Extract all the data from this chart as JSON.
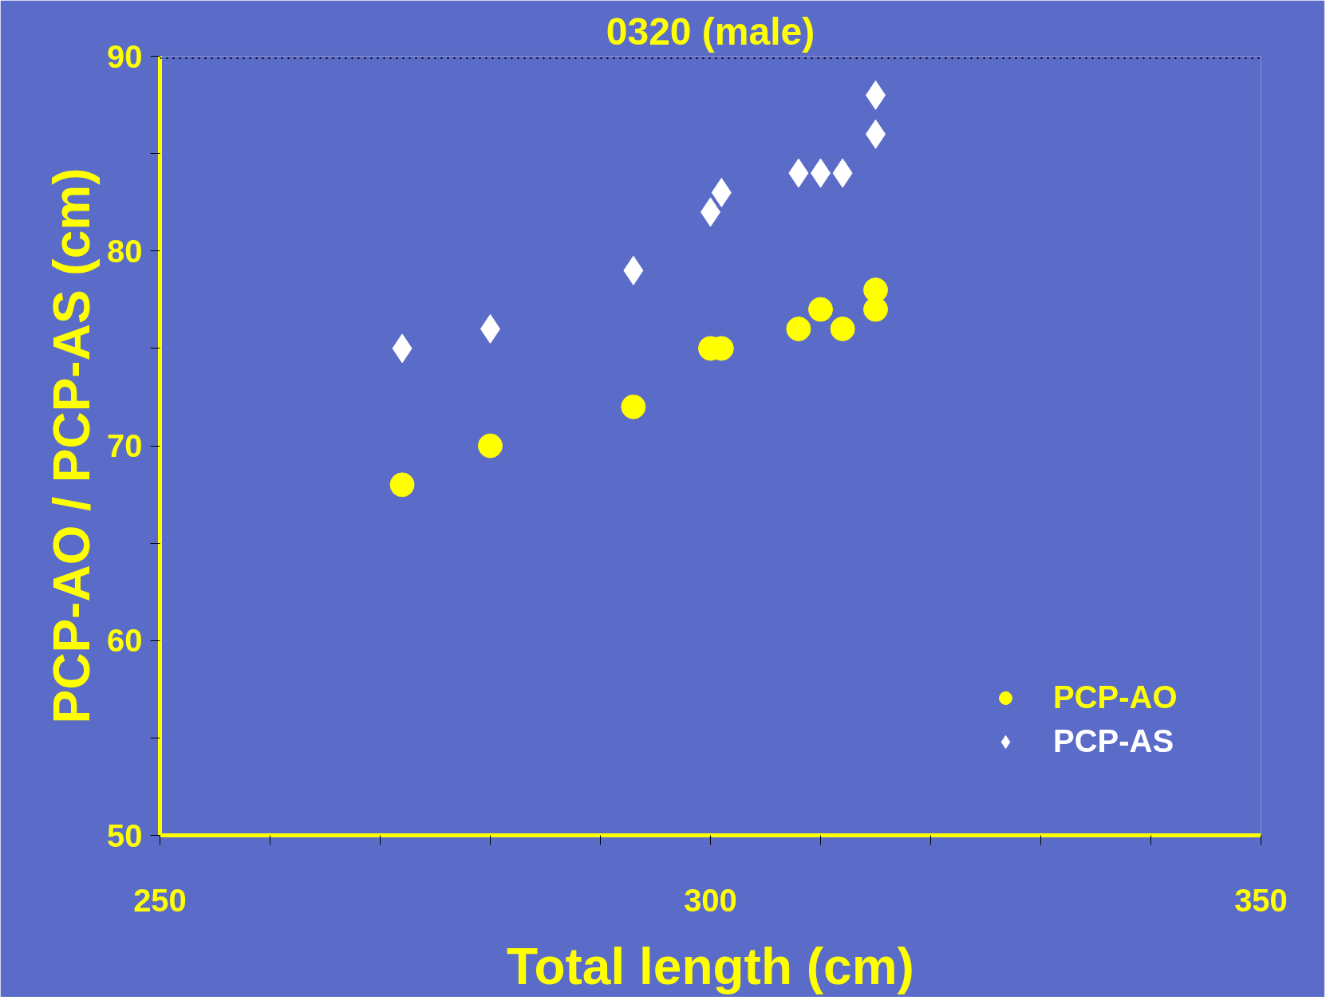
{
  "chart_data": {
    "type": "scatter",
    "title": "0320 (male)",
    "xlabel": "Total length (cm)",
    "ylabel": "PCP-AO / PCP-AS (cm)",
    "xlim": [
      250,
      350
    ],
    "ylim": [
      50,
      90
    ],
    "xticks": [
      250,
      {
        "value": 260,
        "label": null
      },
      {
        "value": 270,
        "label": null
      },
      {
        "value": 280,
        "label": null
      },
      {
        "value": 290,
        "label": null
      },
      300,
      {
        "value": 310,
        "label": null
      },
      {
        "value": 320,
        "label": null
      },
      {
        "value": 330,
        "label": null
      },
      {
        "value": 340,
        "label": null
      },
      350
    ],
    "yticks": [
      50,
      {
        "value": 55,
        "label": null
      },
      60,
      {
        "value": 65,
        "label": null
      },
      70,
      {
        "value": 75,
        "label": null
      },
      80,
      {
        "value": 85,
        "label": null
      },
      90
    ],
    "series": [
      {
        "name": "PCP-AO",
        "color": "#ffff00",
        "marker": "circle",
        "x": [
          272,
          280,
          293,
          300,
          301,
          308,
          310,
          312,
          315,
          315
        ],
        "values": [
          68,
          70,
          72,
          75,
          75,
          76,
          77,
          76,
          78,
          77
        ]
      },
      {
        "name": "PCP-AS",
        "color": "#ffffff",
        "marker": "diamond",
        "x": [
          272,
          280,
          293,
          300,
          301,
          308,
          310,
          312,
          315,
          315
        ],
        "values": [
          75,
          76,
          79,
          82,
          83,
          84,
          84,
          84,
          86,
          88
        ]
      }
    ],
    "ref_lines": [
      {
        "axis": "y",
        "value": 89.9,
        "label": null,
        "color": "#000000",
        "line_style": "dotted"
      }
    ],
    "legend": "bottom right",
    "grid": false
  }
}
